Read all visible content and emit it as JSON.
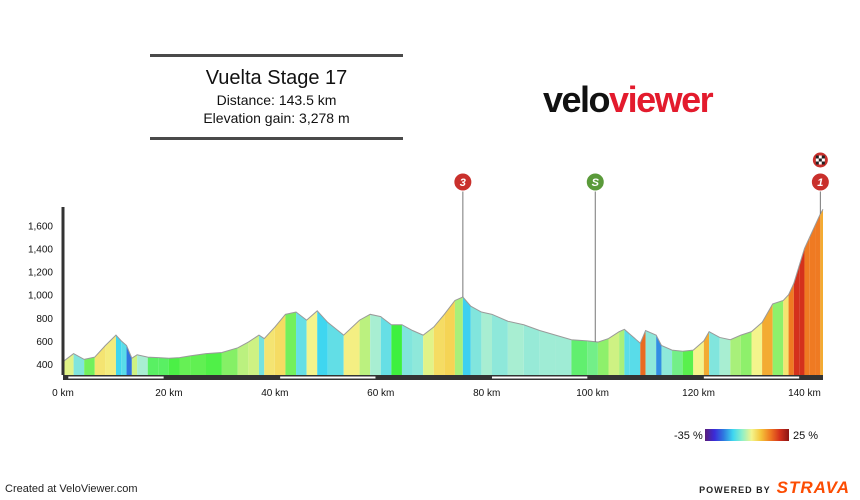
{
  "header": {
    "title": "Vuelta Stage 17",
    "distance": "Distance: 143.5 km",
    "elevation_gain": "Elevation gain: 3,278 m"
  },
  "logo": {
    "part1": "velo",
    "part2": "viewer"
  },
  "footer": {
    "created": "Created at VeloViewer.com",
    "powered_by": "POWERED BY",
    "strava": "STRAVA"
  },
  "gradient_legend": {
    "min_label": "-35 %",
    "max_label": "25 %"
  },
  "markers": [
    {
      "label": "3",
      "km": 75.5,
      "color": "#c9302c"
    },
    {
      "label": "S",
      "km": 100.5,
      "color": "#5a9a3a"
    },
    {
      "label": "1",
      "km": 143.0,
      "color": "#c9302c"
    }
  ],
  "finish_icon": "checkered-flag-icon",
  "chart_data": {
    "type": "area",
    "title": "Vuelta Stage 17",
    "xlabel": "",
    "ylabel": "",
    "xlim": [
      0,
      143.5
    ],
    "ylim": [
      300,
      1800
    ],
    "x_ticks": [
      0,
      20,
      40,
      60,
      80,
      100,
      120,
      140
    ],
    "x_tick_labels": [
      "0 km",
      "20 km",
      "40 km",
      "60 km",
      "80 km",
      "100 km",
      "120 km",
      "140 km"
    ],
    "y_ticks": [
      400,
      600,
      800,
      1000,
      1200,
      1400,
      1600
    ],
    "y_tick_labels": [
      "400",
      "600",
      "800",
      "1,000",
      "1,200",
      "1,400",
      "1,600"
    ],
    "series": [
      {
        "x": [
          0,
          2,
          4,
          6,
          8,
          10,
          11,
          12,
          13,
          14,
          16,
          18,
          20,
          22,
          24,
          27,
          30,
          33,
          35,
          37,
          38,
          40,
          42,
          44,
          46,
          48,
          50,
          53,
          56,
          58,
          60,
          62,
          64,
          66,
          68,
          70,
          72,
          74,
          75.5,
          77,
          79,
          81,
          84,
          87,
          90,
          93,
          96,
          99,
          101,
          103,
          105,
          106,
          107,
          109,
          110,
          112,
          113,
          115,
          117,
          119,
          121,
          122,
          124,
          126,
          128,
          130,
          132,
          134,
          136,
          137,
          138,
          139,
          140,
          141,
          142,
          143,
          143.5
        ],
        "y": [
          420,
          490,
          440,
          460,
          560,
          650,
          600,
          560,
          450,
          480,
          460,
          455,
          450,
          455,
          470,
          490,
          500,
          540,
          590,
          650,
          620,
          720,
          830,
          850,
          780,
          860,
          760,
          650,
          780,
          830,
          810,
          740,
          740,
          690,
          650,
          720,
          830,
          950,
          980,
          900,
          850,
          830,
          770,
          740,
          690,
          650,
          610,
          600,
          590,
          620,
          680,
          700,
          660,
          580,
          690,
          650,
          560,
          520,
          510,
          520,
          600,
          680,
          630,
          610,
          650,
          680,
          760,
          920,
          950,
          1000,
          1100,
          1250,
          1400,
          1500,
          1600,
          1700,
          1740
        ]
      }
    ],
    "color_scale": {
      "min_gradient": -35,
      "max_gradient": 25
    },
    "grid": false
  }
}
